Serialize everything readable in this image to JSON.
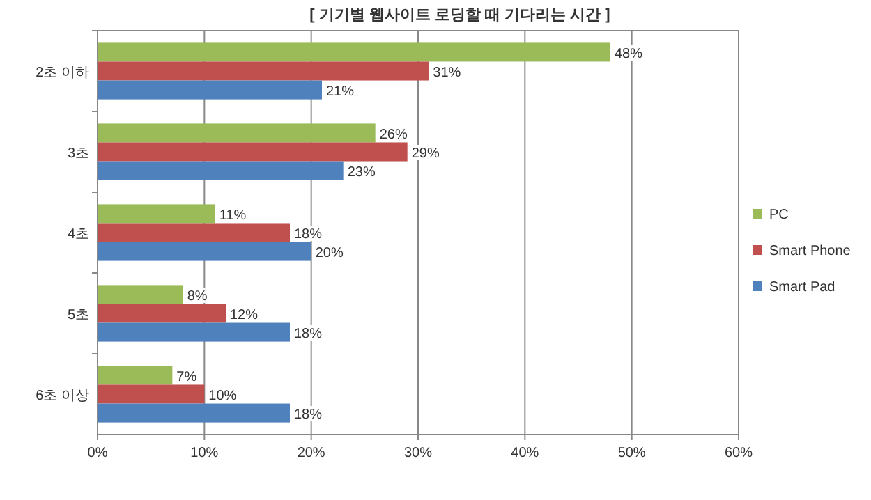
{
  "chart_data": {
    "type": "bar",
    "orientation": "horizontal",
    "title": "[ 기기별 웹사이트 로딩할 때 기다리는 시간 ]",
    "categories": [
      "2초 이하",
      "3초",
      "4초",
      "5초",
      "6초 이상"
    ],
    "series": [
      {
        "name": "PC",
        "color": "#9bbb59",
        "values": [
          48,
          26,
          11,
          8,
          7
        ],
        "value_labels": [
          "48%",
          "26%",
          "11%",
          "8%",
          "7%"
        ]
      },
      {
        "name": "Smart Phone",
        "color": "#c0504d",
        "values": [
          31,
          29,
          18,
          12,
          10
        ],
        "value_labels": [
          "31%",
          "29%",
          "18%",
          "12%",
          "10%"
        ]
      },
      {
        "name": "Smart Pad",
        "color": "#4f81bd",
        "values": [
          21,
          23,
          20,
          18,
          18
        ],
        "value_labels": [
          "21%",
          "23%",
          "20%",
          "18%",
          "18%"
        ]
      }
    ],
    "xlim": [
      0,
      60
    ],
    "xticks": [
      {
        "value": 0,
        "label": "0%"
      },
      {
        "value": 10,
        "label": "10%"
      },
      {
        "value": 20,
        "label": "20%"
      },
      {
        "value": 30,
        "label": "30%"
      },
      {
        "value": 40,
        "label": "40%"
      },
      {
        "value": 50,
        "label": "50%"
      },
      {
        "value": 60,
        "label": "60%"
      }
    ],
    "grid": "x",
    "legend": "right"
  }
}
